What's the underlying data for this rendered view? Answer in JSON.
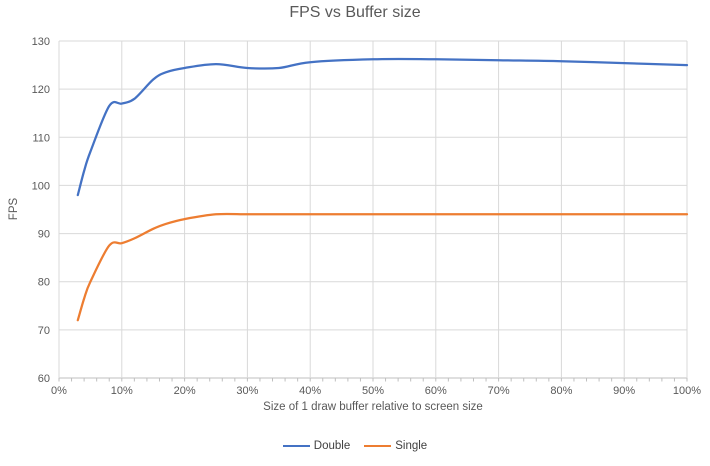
{
  "chart_data": {
    "type": "line",
    "title": "FPS vs Buffer size",
    "xlabel": "Size of 1 draw buffer relative to screen size",
    "ylabel": "FPS",
    "xlim": [
      0,
      100
    ],
    "ylim": [
      60,
      130
    ],
    "x_tick_values": [
      0,
      10,
      20,
      30,
      40,
      50,
      60,
      70,
      80,
      90,
      100
    ],
    "x_tick_labels": [
      "0%",
      "10%",
      "20%",
      "30%",
      "40%",
      "50%",
      "60%",
      "70%",
      "80%",
      "90%",
      "100%"
    ],
    "y_tick_values": [
      60,
      70,
      80,
      90,
      100,
      110,
      120,
      130
    ],
    "x_minor_tick_interval": 2,
    "grid": true,
    "smooth": true,
    "legend_position": "bottom",
    "x": [
      3,
      4,
      5,
      8,
      10,
      12,
      15,
      17,
      20,
      25,
      30,
      35,
      40,
      50,
      60,
      70,
      80,
      90,
      100
    ],
    "series": [
      {
        "name": "Double",
        "color": "#4472C4",
        "values": [
          98,
          103,
          107,
          116.5,
          117,
          118,
          122,
          123.5,
          124.4,
          125.2,
          124.4,
          124.4,
          125.6,
          126.2,
          126.2,
          126,
          125.8,
          125.4,
          125
        ]
      },
      {
        "name": "Single",
        "color": "#ED7D31",
        "values": [
          72,
          76.5,
          80,
          87.5,
          88,
          89,
          91,
          92,
          93,
          94,
          94,
          94,
          94,
          94,
          94,
          94,
          94,
          94,
          94
        ]
      }
    ]
  },
  "style": {
    "text_color": "#595959",
    "tick_label_color": "#595959",
    "gridline_color": "#D9D9D9",
    "axis_line_color": "#BFBFBF",
    "background": "#FFFFFF"
  }
}
